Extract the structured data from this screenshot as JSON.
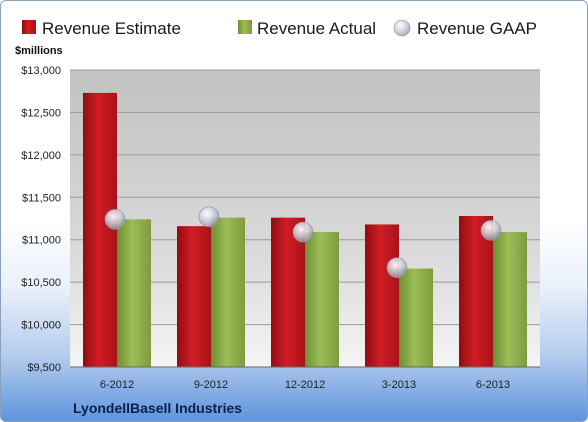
{
  "chart_data": {
    "type": "bar",
    "title": "",
    "ylabel": "$millions",
    "footer": "LyondellBasell Industries",
    "categories": [
      "6-2012",
      "9-2012",
      "12-2012",
      "3-2013",
      "6-2013"
    ],
    "ylim": [
      9500,
      13000
    ],
    "yticks": [
      9500,
      10000,
      10500,
      11000,
      11500,
      12000,
      12500,
      13000
    ],
    "ytick_labels": [
      "$9,500",
      "$10,000",
      "$10,500",
      "$11,000",
      "$11,500",
      "$12,000",
      "$12,500",
      "$13,000"
    ],
    "grid": true,
    "legend_position": "top",
    "series": [
      {
        "name": "Revenue Estimate",
        "type": "bar",
        "color": "#c8171e",
        "values": [
          12730,
          11160,
          11260,
          11180,
          11280
        ]
      },
      {
        "name": "Revenue Actual",
        "type": "bar",
        "color": "#8fb04a",
        "values": [
          11240,
          11260,
          11090,
          10660,
          11090
        ]
      },
      {
        "name": "Revenue GAAP",
        "type": "marker",
        "color": "#c9ccd6",
        "values": [
          11240,
          11270,
          11090,
          10670,
          11110
        ]
      }
    ]
  }
}
